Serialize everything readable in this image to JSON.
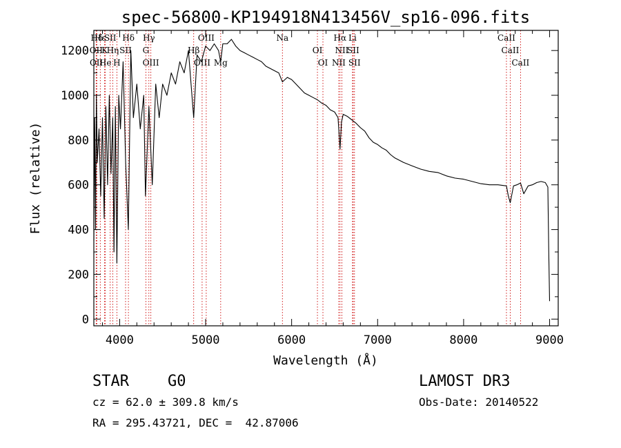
{
  "chart_data": {
    "type": "line",
    "title": "spec-56800-KP194918N413456V_sp16-096.fits",
    "xlabel": "Wavelength (Å)",
    "ylabel": "Flux (relative)",
    "xlim": [
      3700,
      9100
    ],
    "ylim": [
      -30,
      1290
    ],
    "x_ticks": [
      4000,
      5000,
      6000,
      7000,
      8000,
      9000
    ],
    "y_ticks": [
      0,
      200,
      400,
      600,
      800,
      1000,
      1200
    ],
    "series": [
      {
        "name": "spectrum",
        "x": [
          3700,
          3710,
          3720,
          3730,
          3740,
          3760,
          3780,
          3800,
          3820,
          3840,
          3860,
          3880,
          3900,
          3920,
          3934,
          3950,
          3968,
          3990,
          4010,
          4040,
          4070,
          4101,
          4130,
          4160,
          4200,
          4240,
          4280,
          4300,
          4340,
          4380,
          4420,
          4460,
          4500,
          4550,
          4600,
          4650,
          4700,
          4750,
          4800,
          4861,
          4900,
          4950,
          5000,
          5050,
          5100,
          5150,
          5175,
          5200,
          5250,
          5300,
          5350,
          5400,
          5450,
          5500,
          5550,
          5600,
          5650,
          5700,
          5750,
          5800,
          5850,
          5893,
          5950,
          6000,
          6050,
          6100,
          6150,
          6200,
          6250,
          6300,
          6350,
          6400,
          6450,
          6500,
          6540,
          6563,
          6580,
          6600,
          6650,
          6700,
          6750,
          6800,
          6850,
          6900,
          6950,
          7000,
          7050,
          7100,
          7150,
          7200,
          7300,
          7400,
          7500,
          7600,
          7700,
          7800,
          7900,
          8000,
          8100,
          8200,
          8300,
          8400,
          8498,
          8520,
          8542,
          8580,
          8620,
          8662,
          8700,
          8750,
          8800,
          8850,
          8900,
          8950,
          8980,
          8990,
          9000
        ],
        "y": [
          350,
          900,
          400,
          1000,
          700,
          850,
          550,
          900,
          450,
          950,
          600,
          1000,
          650,
          900,
          300,
          950,
          250,
          1000,
          850,
          1150,
          700,
          400,
          1200,
          900,
          1050,
          850,
          1000,
          550,
          950,
          600,
          1050,
          900,
          1050,
          1000,
          1100,
          1050,
          1150,
          1100,
          1200,
          900,
          1180,
          1150,
          1220,
          1200,
          1230,
          1200,
          1150,
          1230,
          1230,
          1250,
          1220,
          1200,
          1190,
          1180,
          1170,
          1160,
          1150,
          1130,
          1120,
          1110,
          1100,
          1060,
          1080,
          1070,
          1050,
          1030,
          1010,
          1000,
          990,
          980,
          965,
          955,
          935,
          925,
          900,
          760,
          880,
          915,
          905,
          890,
          875,
          855,
          840,
          810,
          790,
          780,
          765,
          755,
          735,
          720,
          700,
          685,
          670,
          660,
          655,
          640,
          630,
          625,
          615,
          605,
          600,
          600,
          595,
          550,
          520,
          595,
          600,
          608,
          560,
          595,
          600,
          610,
          615,
          610,
          590,
          300,
          80
        ]
      }
    ],
    "annotations": [
      {
        "label": "Hδ",
        "x": 3735
      },
      {
        "label": "OII",
        "x": 3727
      },
      {
        "label": "OII",
        "x": 3729
      },
      {
        "label": "Hε",
        "x": 3775
      },
      {
        "label": "K",
        "x": 3825
      },
      {
        "label": "He",
        "x": 3834
      },
      {
        "label": "SII",
        "x": 3890
      },
      {
        "label": "Hη",
        "x": 3920
      },
      {
        "label": "H",
        "x": 3968
      },
      {
        "label": "Hδ",
        "x": 4102
      },
      {
        "label": "SII",
        "x": 4069
      },
      {
        "label": "OIII",
        "x": 4363
      },
      {
        "label": "Hγ",
        "x": 4340
      },
      {
        "label": "G",
        "x": 4305
      },
      {
        "label": "OIII",
        "x": 4959
      },
      {
        "label": "OIII",
        "x": 5007
      },
      {
        "label": "Hβ",
        "x": 4861
      },
      {
        "label": "Mg",
        "x": 5175
      },
      {
        "label": "Na",
        "x": 5893
      },
      {
        "label": "OI",
        "x": 6300
      },
      {
        "label": "OI",
        "x": 6364
      },
      {
        "label": "Hα",
        "x": 6563
      },
      {
        "label": "SII",
        "x": 6716
      },
      {
        "label": "NII",
        "x": 6548
      },
      {
        "label": "Li",
        "x": 6708
      },
      {
        "label": "NII",
        "x": 6584
      },
      {
        "label": "SII",
        "x": 6731
      },
      {
        "label": "CaII",
        "x": 8498
      },
      {
        "label": "CaII",
        "x": 8542
      },
      {
        "label": "CaII",
        "x": 8662
      }
    ]
  },
  "info": {
    "object_class": "STAR",
    "subclass": "G0",
    "survey": "LAMOST DR3",
    "cz": "cz = 62.0 ± 309.8 km/s",
    "obs_date": "Obs-Date: 20140522",
    "coords": "RA = 295.43721, DEC =  42.87006"
  }
}
